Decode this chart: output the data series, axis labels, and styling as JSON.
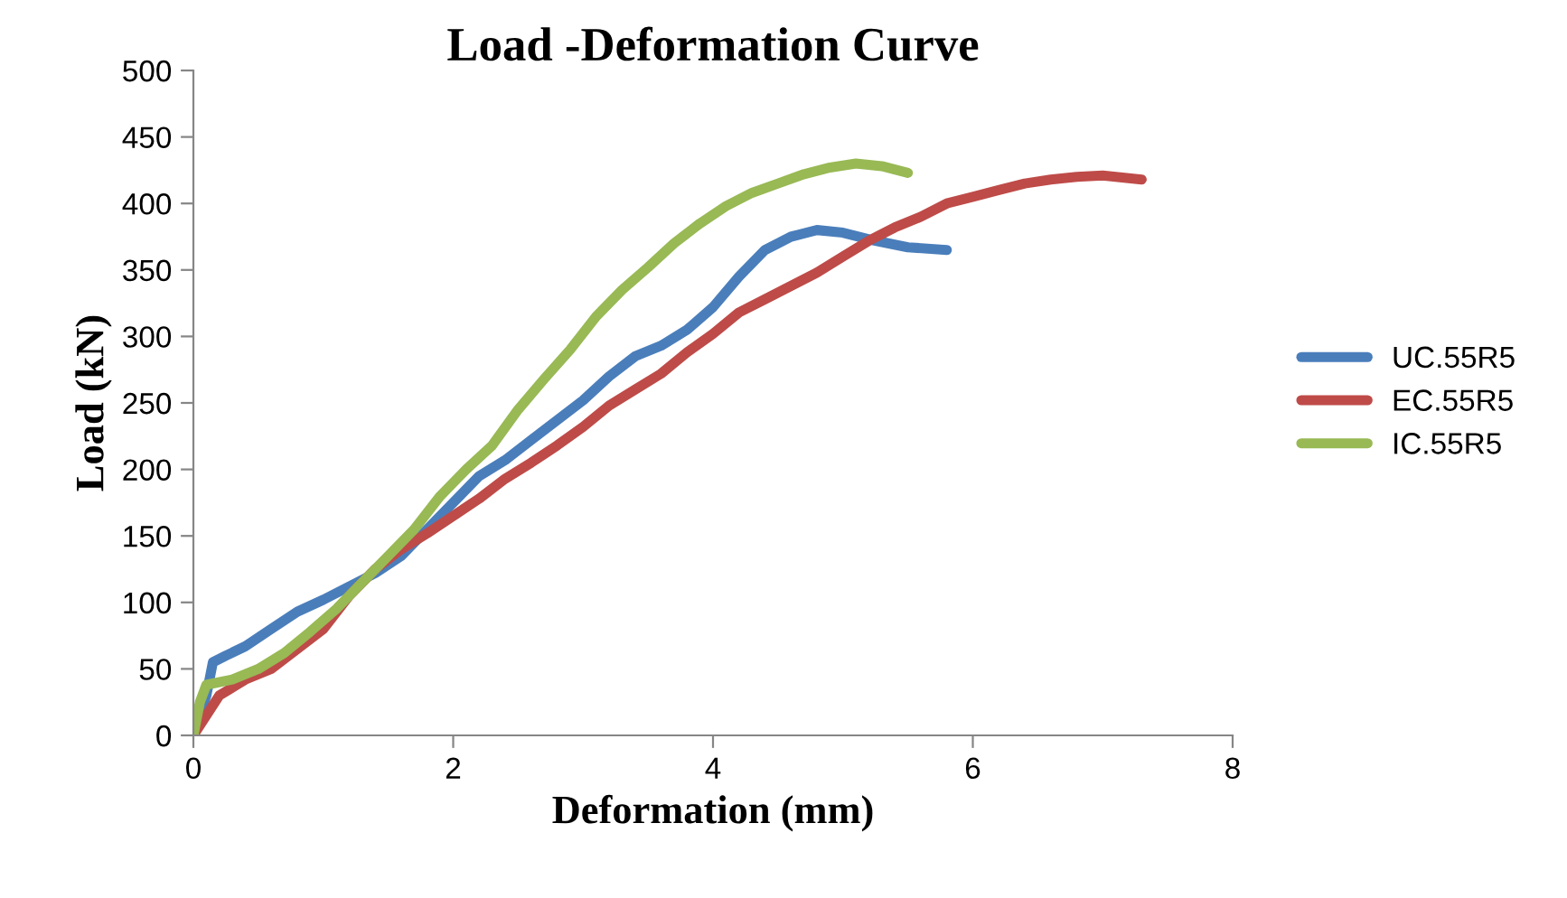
{
  "chart_data": {
    "type": "line",
    "title": "Load -Deformation Curve",
    "xlabel": "Deformation (mm)",
    "ylabel": "Load (kN)",
    "xlim": [
      0,
      8
    ],
    "xticks": [
      0,
      2,
      4,
      6,
      8
    ],
    "ylim": [
      0,
      500
    ],
    "yticks": [
      0,
      50,
      100,
      150,
      200,
      250,
      300,
      350,
      400,
      450,
      500
    ],
    "grid": false,
    "legend": "right",
    "marker": "none",
    "line_style": "solid",
    "series": [
      {
        "name": "UC.55R5",
        "color": "#4a7ebb",
        "x": [
          0,
          0.1,
          0.15,
          0.25,
          0.4,
          0.6,
          0.8,
          1.0,
          1.2,
          1.4,
          1.6,
          1.8,
          2.0,
          2.2,
          2.4,
          2.6,
          2.8,
          3.0,
          3.2,
          3.4,
          3.6,
          3.8,
          4.0,
          4.2,
          4.4,
          4.6,
          4.8,
          5.0,
          5.2,
          5.5,
          5.8
        ],
        "values": [
          0,
          30,
          55,
          60,
          67,
          80,
          93,
          102,
          112,
          122,
          135,
          155,
          175,
          195,
          207,
          222,
          237,
          252,
          270,
          285,
          293,
          305,
          322,
          345,
          365,
          375,
          380,
          378,
          373,
          367,
          365
        ]
      },
      {
        "name": "EC.55R5",
        "color": "#be4b48",
        "x": [
          0,
          0.2,
          0.4,
          0.6,
          0.8,
          1.0,
          1.2,
          1.4,
          1.6,
          1.8,
          2.0,
          2.2,
          2.4,
          2.6,
          2.8,
          3.0,
          3.2,
          3.4,
          3.6,
          3.8,
          4.0,
          4.2,
          4.4,
          4.6,
          4.8,
          5.0,
          5.2,
          5.4,
          5.6,
          5.8,
          6.0,
          6.2,
          6.4,
          6.6,
          6.8,
          7.0,
          7.3
        ],
        "values": [
          0,
          30,
          42,
          50,
          65,
          80,
          105,
          125,
          140,
          152,
          165,
          178,
          193,
          205,
          218,
          232,
          248,
          260,
          272,
          288,
          302,
          318,
          328,
          338,
          348,
          360,
          372,
          382,
          390,
          400,
          405,
          410,
          415,
          418,
          420,
          421,
          418
        ]
      },
      {
        "name": "IC.55R5",
        "color": "#98b954",
        "x": [
          0,
          0.05,
          0.1,
          0.3,
          0.5,
          0.7,
          0.9,
          1.1,
          1.3,
          1.5,
          1.7,
          1.9,
          2.1,
          2.3,
          2.5,
          2.7,
          2.9,
          3.1,
          3.3,
          3.5,
          3.7,
          3.9,
          4.1,
          4.3,
          4.5,
          4.7,
          4.9,
          5.1,
          5.3,
          5.5
        ],
        "values": [
          0,
          25,
          38,
          42,
          50,
          62,
          78,
          95,
          115,
          135,
          155,
          180,
          200,
          218,
          245,
          268,
          290,
          315,
          335,
          352,
          370,
          385,
          398,
          408,
          415,
          422,
          427,
          430,
          428,
          423
        ]
      }
    ]
  }
}
